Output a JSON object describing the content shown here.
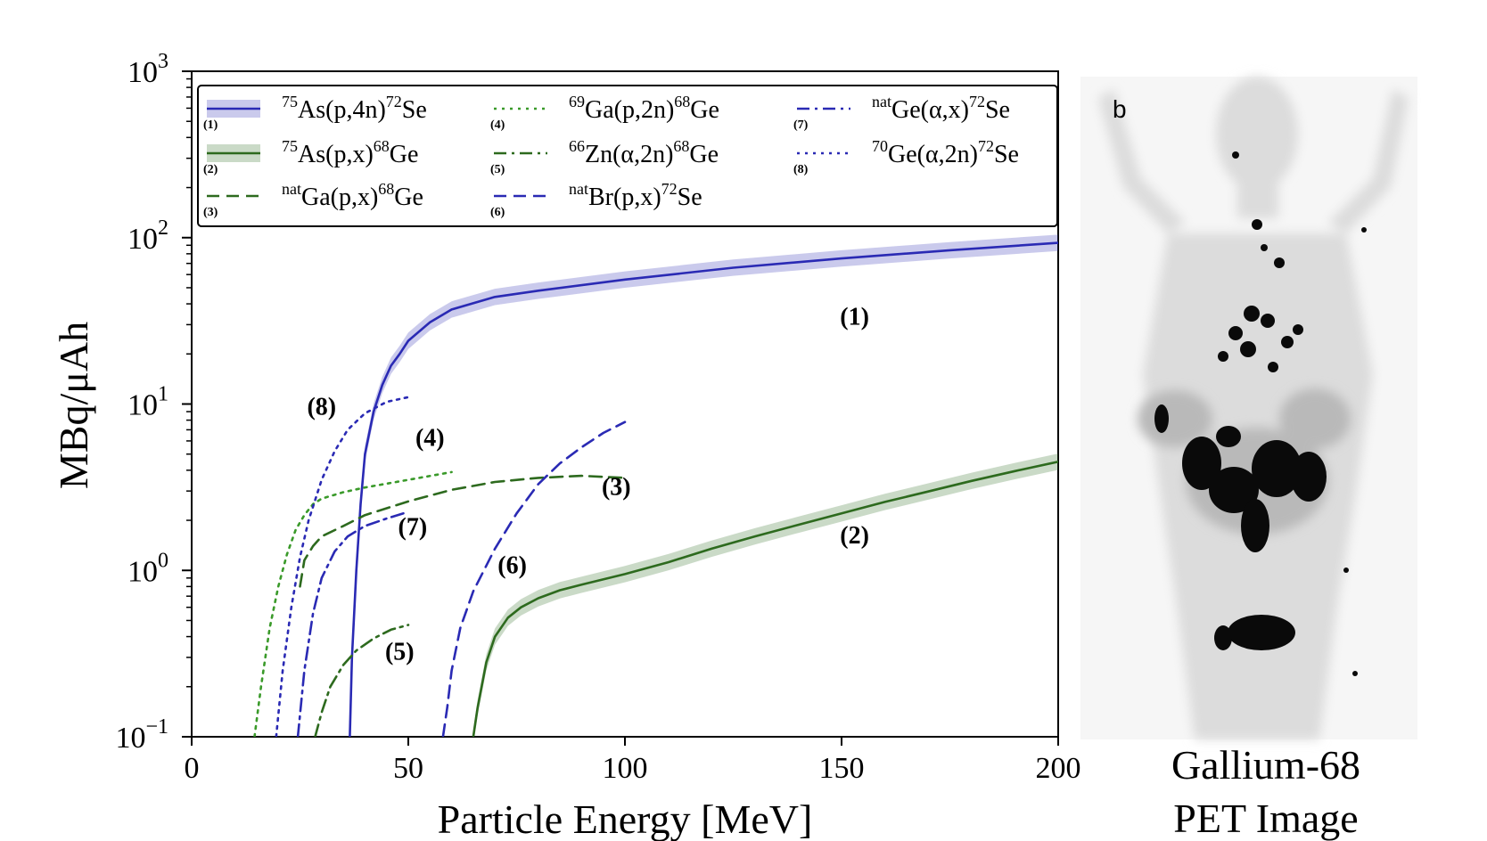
{
  "chart_data": {
    "type": "line",
    "xlabel": "Particle Energy [MeV]",
    "ylabel": "MBq/μAh",
    "xlim": [
      0,
      200
    ],
    "ylim": [
      0.1,
      1000
    ],
    "yscale": "log",
    "x_ticks": [
      {
        "v": 0,
        "label": "0"
      },
      {
        "v": 50,
        "label": "50"
      },
      {
        "v": 100,
        "label": "100"
      },
      {
        "v": 150,
        "label": "150"
      },
      {
        "v": 200,
        "label": "200"
      }
    ],
    "y_ticks": [
      {
        "v": 0.1,
        "base": "10",
        "exp": "−1"
      },
      {
        "v": 1,
        "base": "10",
        "exp": "0"
      },
      {
        "v": 10,
        "base": "10",
        "exp": "1"
      },
      {
        "v": 100,
        "base": "10",
        "exp": "2"
      },
      {
        "v": 1000,
        "base": "10",
        "exp": "3"
      }
    ],
    "legend_position": "top",
    "series": [
      {
        "id": "1",
        "num": "(1)",
        "mass": "75",
        "target": "As(p,4n)",
        "pmass": "72",
        "product": "Se",
        "color": "#2a2ab4",
        "dash": "solid",
        "band": true,
        "x": [
          36.5,
          37,
          38,
          39,
          40,
          42,
          44,
          46,
          48,
          50,
          55,
          60,
          70,
          80,
          100,
          125,
          150,
          175,
          200
        ],
        "y": [
          0.1,
          0.3,
          1.0,
          2.5,
          5.0,
          9.0,
          13.0,
          17.0,
          20.0,
          24.0,
          31.0,
          37.0,
          44.0,
          48.0,
          56.0,
          66.0,
          75.0,
          84.0,
          93.0
        ]
      },
      {
        "id": "2",
        "num": "(2)",
        "mass": "75",
        "target": "As(p,x)",
        "pmass": "68",
        "product": "Ge",
        "color": "#2d6a1e",
        "dash": "solid",
        "band": true,
        "x": [
          65,
          66,
          68,
          70,
          73,
          76,
          80,
          85,
          90,
          100,
          110,
          120,
          130,
          140,
          150,
          160,
          170,
          180,
          190,
          200
        ],
        "y": [
          0.1,
          0.15,
          0.28,
          0.4,
          0.52,
          0.6,
          0.68,
          0.76,
          0.82,
          0.95,
          1.12,
          1.35,
          1.6,
          1.88,
          2.2,
          2.58,
          2.98,
          3.45,
          3.95,
          4.5
        ]
      },
      {
        "id": "3",
        "num": "(3)",
        "mass": "nat",
        "target": "Ga(p,x)",
        "pmass": "68",
        "product": "Ge",
        "color": "#2d6a1e",
        "dash": "14,8",
        "band": false,
        "x": [
          25,
          26,
          28,
          30,
          35,
          40,
          50,
          60,
          70,
          80,
          90,
          100
        ],
        "y": [
          0.8,
          1.15,
          1.4,
          1.6,
          1.85,
          2.15,
          2.6,
          3.05,
          3.4,
          3.6,
          3.7,
          3.6
        ]
      },
      {
        "id": "4",
        "num": "(4)",
        "mass": "69",
        "target": "Ga(p,2n)",
        "pmass": "68",
        "product": "Ge",
        "color": "#3a9a2a",
        "dash": "3,6",
        "band": false,
        "x": [
          14.5,
          16,
          18,
          20,
          22,
          24,
          26,
          28,
          30,
          35,
          40,
          50,
          60
        ],
        "y": [
          0.1,
          0.2,
          0.45,
          0.8,
          1.25,
          1.75,
          2.15,
          2.5,
          2.7,
          2.95,
          3.15,
          3.5,
          3.9
        ]
      },
      {
        "id": "5",
        "num": "(5)",
        "mass": "66",
        "target": "Zn(α,2n)",
        "pmass": "68",
        "product": "Ge",
        "color": "#2d6a1e",
        "dash": "14,6,3,6",
        "band": false,
        "x": [
          28.5,
          30,
          32,
          35,
          38,
          42,
          46,
          50
        ],
        "y": [
          0.1,
          0.14,
          0.2,
          0.27,
          0.33,
          0.39,
          0.44,
          0.47
        ]
      },
      {
        "id": "6",
        "num": "(6)",
        "mass": "nat",
        "target": "Br(p,x)",
        "pmass": "72",
        "product": "Se",
        "color": "#2a2ab4",
        "dash": "14,8",
        "band": false,
        "x": [
          58,
          59,
          60,
          62,
          65,
          70,
          75,
          80,
          85,
          90,
          95,
          100
        ],
        "y": [
          0.1,
          0.15,
          0.25,
          0.45,
          0.75,
          1.35,
          2.2,
          3.3,
          4.4,
          5.5,
          6.7,
          7.8
        ]
      },
      {
        "id": "7",
        "num": "(7)",
        "mass": "nat",
        "target": "Ge(α,x)",
        "pmass": "72",
        "product": "Se",
        "color": "#2a2ab4",
        "dash": "14,6,3,6",
        "band": false,
        "x": [
          24.5,
          26,
          28,
          30,
          33,
          36,
          40,
          45,
          50
        ],
        "y": [
          0.1,
          0.25,
          0.55,
          0.9,
          1.3,
          1.6,
          1.85,
          2.05,
          2.25
        ]
      },
      {
        "id": "8",
        "num": "(8)",
        "mass": "70",
        "target": "Ge(α,2n)",
        "pmass": "72",
        "product": "Se",
        "color": "#2a2ab4",
        "dash": "3,6",
        "band": false,
        "x": [
          19.5,
          21,
          23,
          25,
          27,
          30,
          33,
          36,
          40,
          45,
          50
        ],
        "y": [
          0.1,
          0.25,
          0.6,
          1.2,
          2.0,
          3.5,
          5.2,
          7.0,
          8.8,
          10.3,
          11.0
        ]
      }
    ],
    "annotations": [
      {
        "text": "(1)",
        "x": 153,
        "y": 30
      },
      {
        "text": "(2)",
        "x": 153,
        "y": 1.45
      },
      {
        "text": "(3)",
        "x": 98,
        "y": 2.85
      },
      {
        "text": "(4)",
        "x": 55,
        "y": 5.6
      },
      {
        "text": "(5)",
        "x": 48,
        "y": 0.29
      },
      {
        "text": "(6)",
        "x": 74,
        "y": 0.96
      },
      {
        "text": "(7)",
        "x": 51,
        "y": 1.63
      },
      {
        "text": "(8)",
        "x": 30,
        "y": 8.6
      }
    ]
  },
  "pet_panel": {
    "letter": "b",
    "caption_line1": "Gallium-68",
    "caption_line2": "PET Image"
  }
}
